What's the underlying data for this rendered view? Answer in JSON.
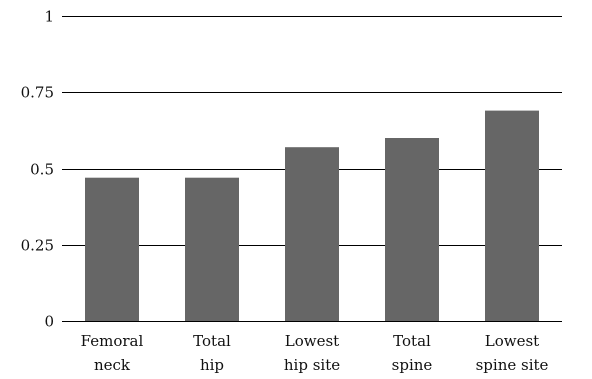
{
  "chart_data": {
    "type": "bar",
    "categories": [
      [
        "Femoral",
        "neck"
      ],
      [
        "Total",
        "hip"
      ],
      [
        "Lowest",
        "hip site"
      ],
      [
        "Total",
        "spine"
      ],
      [
        "Lowest",
        "spine site"
      ]
    ],
    "values": [
      0.47,
      0.47,
      0.57,
      0.6,
      0.69
    ],
    "ylim": [
      0,
      1
    ],
    "yticks": [
      0,
      0.25,
      0.5,
      0.75,
      1
    ],
    "ytick_labels": [
      "0",
      "0.25",
      "0.5",
      "0.75",
      "1"
    ],
    "grid": true,
    "bar_color": "#666666",
    "grid_color": "#000000"
  }
}
